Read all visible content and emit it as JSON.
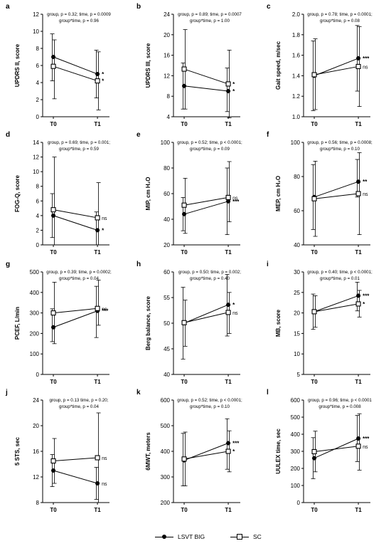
{
  "chart_data": [
    {
      "type": "line",
      "panel": "a",
      "ylabel": "UPDRS II, score",
      "yticks": [
        0,
        2,
        4,
        6,
        8,
        10,
        12
      ],
      "ylim": [
        0,
        12
      ],
      "categories": [
        "T0",
        "T1"
      ],
      "stats": [
        "group, p = 0.32; time, p = 0.0009",
        "group*time, p = 0.96"
      ],
      "series": [
        {
          "name": "LSVT BIG",
          "values": [
            7.0,
            5.0
          ],
          "err_lo": [
            4.2,
            2.2
          ],
          "err_hi": [
            9.7,
            7.8
          ],
          "sig": "*"
        },
        {
          "name": "SC",
          "values": [
            5.9,
            4.2
          ],
          "err_lo": [
            2.1,
            0.8
          ],
          "err_hi": [
            9.0,
            7.6
          ],
          "sig": "*"
        }
      ]
    },
    {
      "type": "line",
      "panel": "b",
      "ylabel": "UPDRS III, score",
      "yticks": [
        4,
        8,
        12,
        16,
        20,
        24
      ],
      "ylim": [
        4,
        24
      ],
      "categories": [
        "T0",
        "T1"
      ],
      "stats": [
        "group, p = 0.89; time, p = 0.0007",
        "group*time, p = 1.00"
      ],
      "series": [
        {
          "name": "LSVT BIG",
          "values": [
            10.0,
            9.0
          ],
          "err_lo": [
            5.5,
            5.0
          ],
          "err_hi": [
            14.5,
            13.5
          ],
          "sig": "*"
        },
        {
          "name": "SC",
          "values": [
            13.3,
            10.4
          ],
          "err_lo": [
            5.5,
            3.8
          ],
          "err_hi": [
            21.0,
            17.0
          ],
          "sig": "*"
        }
      ]
    },
    {
      "type": "line",
      "panel": "c",
      "ylabel": "Gait speed, m/sec",
      "yticks": [
        1.0,
        1.2,
        1.4,
        1.6,
        1.8,
        2.0
      ],
      "ylim": [
        1.0,
        2.0
      ],
      "categories": [
        "T0",
        "T1"
      ],
      "stats": [
        "group, p = 0.78; time, p = 0.0001;",
        "group*time, p = 0.08"
      ],
      "series": [
        {
          "name": "LSVT BIG",
          "values": [
            1.4,
            1.57
          ],
          "err_lo": [
            1.06,
            1.25
          ],
          "err_hi": [
            1.74,
            1.89
          ],
          "sig": "***"
        },
        {
          "name": "SC",
          "values": [
            1.41,
            1.49
          ],
          "err_lo": [
            1.07,
            1.1
          ],
          "err_hi": [
            1.76,
            1.88
          ],
          "sig": "ns"
        }
      ]
    },
    {
      "type": "line",
      "panel": "d",
      "ylabel": "FOG-Q, score",
      "yticks": [
        0,
        2,
        4,
        6,
        8,
        10,
        12,
        14
      ],
      "ylim": [
        0,
        14
      ],
      "categories": [
        "T0",
        "T1"
      ],
      "stats": [
        "group, p = 0.69; time, p = 0.001;",
        "group*time, p = 0.59"
      ],
      "series": [
        {
          "name": "LSVT BIG",
          "values": [
            4.0,
            2.0
          ],
          "err_lo": [
            1.0,
            0.0
          ],
          "err_hi": [
            7.0,
            4.5
          ],
          "sig": "*"
        },
        {
          "name": "SC",
          "values": [
            4.8,
            3.7
          ],
          "err_lo": [
            0.0,
            0.0
          ],
          "err_hi": [
            12.0,
            8.5
          ],
          "sig": "ns"
        }
      ]
    },
    {
      "type": "line",
      "panel": "e",
      "ylabel": "MIP, cm H₂O",
      "yticks": [
        20,
        40,
        60,
        80,
        100
      ],
      "ylim": [
        20,
        100
      ],
      "categories": [
        "T0",
        "T1"
      ],
      "stats": [
        "group, p = 0.52; time, p < 0.0001;",
        "group*time, p = 0.09"
      ],
      "series": [
        {
          "name": "LSVT BIG",
          "values": [
            44,
            54
          ],
          "err_lo": [
            31,
            28
          ],
          "err_hi": [
            57,
            80
          ],
          "sig": "***"
        },
        {
          "name": "SC",
          "values": [
            51,
            57
          ],
          "err_lo": [
            29,
            38
          ],
          "err_hi": [
            72,
            85
          ],
          "sig": "ns"
        }
      ]
    },
    {
      "type": "line",
      "panel": "f",
      "ylabel": "MEP, cm H₂O",
      "yticks": [
        40,
        60,
        80,
        100
      ],
      "ylim": [
        40,
        100
      ],
      "categories": [
        "T0",
        "T1"
      ],
      "stats": [
        "group, p = 0.56; time, p = 0.0008;",
        "group*time, p = 0.10"
      ],
      "series": [
        {
          "name": "LSVT BIG",
          "values": [
            68,
            77
          ],
          "err_lo": [
            49,
            68
          ],
          "err_hi": [
            87,
            90
          ],
          "sig": "**"
        },
        {
          "name": "SC",
          "values": [
            67,
            70
          ],
          "err_lo": [
            45,
            46
          ],
          "err_hi": [
            89,
            94
          ],
          "sig": "ns"
        }
      ]
    },
    {
      "type": "line",
      "panel": "g",
      "ylabel": "PCEF, L/min",
      "yticks": [
        0,
        100,
        200,
        300,
        400,
        500
      ],
      "ylim": [
        0,
        500
      ],
      "categories": [
        "T0",
        "T1"
      ],
      "stats": [
        "group, p = 0.39; time, p = 0.0002;",
        "group*time, p = 0.04"
      ],
      "series": [
        {
          "name": "LSVT BIG",
          "values": [
            230,
            310
          ],
          "err_lo": [
            160,
            180
          ],
          "err_hi": [
            320,
            430
          ],
          "sig": "***"
        },
        {
          "name": "SC",
          "values": [
            300,
            322
          ],
          "err_lo": [
            150,
            240
          ],
          "err_hi": [
            450,
            460
          ],
          "sig": "ns"
        }
      ]
    },
    {
      "type": "line",
      "panel": "h",
      "ylabel": "Berg balance, score",
      "yticks": [
        40,
        45,
        50,
        55,
        60
      ],
      "ylim": [
        40,
        60
      ],
      "categories": [
        "T0",
        "T1"
      ],
      "stats": [
        "group, p = 0.50; time, p = 0.002;",
        "group*time, p = 0.40"
      ],
      "series": [
        {
          "name": "LSVT BIG",
          "values": [
            50.0,
            53.6
          ],
          "err_lo": [
            43,
            47.5
          ],
          "err_hi": [
            57,
            59.5
          ],
          "sig": "*"
        },
        {
          "name": "SC",
          "values": [
            50.1,
            52.1
          ],
          "err_lo": [
            45.5,
            48
          ],
          "err_hi": [
            54.5,
            56
          ],
          "sig": "ns"
        }
      ]
    },
    {
      "type": "line",
      "panel": "i",
      "ylabel": "MB, score",
      "yticks": [
        5,
        10,
        15,
        20,
        25,
        30
      ],
      "ylim": [
        5,
        30
      ],
      "categories": [
        "T0",
        "T1"
      ],
      "stats": [
        "group, p = 0.40; time, p < 0.0001;",
        "group*time, p = 0.01"
      ],
      "series": [
        {
          "name": "LSVT BIG",
          "values": [
            20.3,
            24.2
          ],
          "err_lo": [
            16.0,
            20.5
          ],
          "err_hi": [
            24.6,
            27.5
          ],
          "sig": "***"
        },
        {
          "name": "SC",
          "values": [
            20.3,
            22.2
          ],
          "err_lo": [
            16.5,
            19.0
          ],
          "err_hi": [
            24.2,
            25.5
          ],
          "sig": "*"
        }
      ]
    },
    {
      "type": "line",
      "panel": "j",
      "ylabel": "5 STS, sec",
      "yticks": [
        8,
        12,
        16,
        20,
        24
      ],
      "ylim": [
        8,
        24
      ],
      "categories": [
        "T0",
        "T1"
      ],
      "stats": [
        "group, p = 0.13 time, p = 0.20;",
        "group*time, p = 0.04"
      ],
      "series": [
        {
          "name": "LSVT BIG",
          "values": [
            13.0,
            11.0
          ],
          "err_lo": [
            10.5,
            8.5
          ],
          "err_hi": [
            15.5,
            13.5
          ],
          "sig": "ns"
        },
        {
          "name": "SC",
          "values": [
            14.5,
            15.0
          ],
          "err_lo": [
            11.0,
            8.0
          ],
          "err_hi": [
            18.0,
            22.0
          ],
          "sig": "ns"
        }
      ]
    },
    {
      "type": "line",
      "panel": "k",
      "ylabel": "6MWT, meters",
      "yticks": [
        200,
        300,
        400,
        500,
        600
      ],
      "ylim": [
        200,
        600
      ],
      "categories": [
        "T0",
        "T1"
      ],
      "stats": [
        "group, p = 0.52; time, p < 0.0001;",
        "group*time, p = 0.10"
      ],
      "series": [
        {
          "name": "LSVT BIG",
          "values": [
            365,
            432
          ],
          "err_lo": [
            265,
            330
          ],
          "err_hi": [
            470,
            527
          ],
          "sig": "***"
        },
        {
          "name": "SC",
          "values": [
            370,
            400
          ],
          "err_lo": [
            265,
            320
          ],
          "err_hi": [
            475,
            480
          ],
          "sig": "*"
        }
      ]
    },
    {
      "type": "line",
      "panel": "l",
      "ylabel": "UULEX time, sec",
      "yticks": [
        0,
        100,
        200,
        300,
        400,
        500,
        600
      ],
      "ylim": [
        0,
        600
      ],
      "categories": [
        "T0",
        "T1"
      ],
      "stats": [
        "group, p = 0.96; time, p < 0.0001",
        "group*time, p = 0.008"
      ],
      "series": [
        {
          "name": "LSVT BIG",
          "values": [
            260,
            375
          ],
          "err_lo": [
            140,
            240
          ],
          "err_hi": [
            380,
            510
          ],
          "sig": "***"
        },
        {
          "name": "SC",
          "values": [
            298,
            330
          ],
          "err_lo": [
            180,
            190
          ],
          "err_hi": [
            418,
            520
          ],
          "sig": "ns"
        }
      ]
    }
  ],
  "legend": {
    "items": [
      {
        "label": "LSVT BIG",
        "marker": "filled-circle"
      },
      {
        "label": "SC",
        "marker": "open-square"
      }
    ]
  }
}
